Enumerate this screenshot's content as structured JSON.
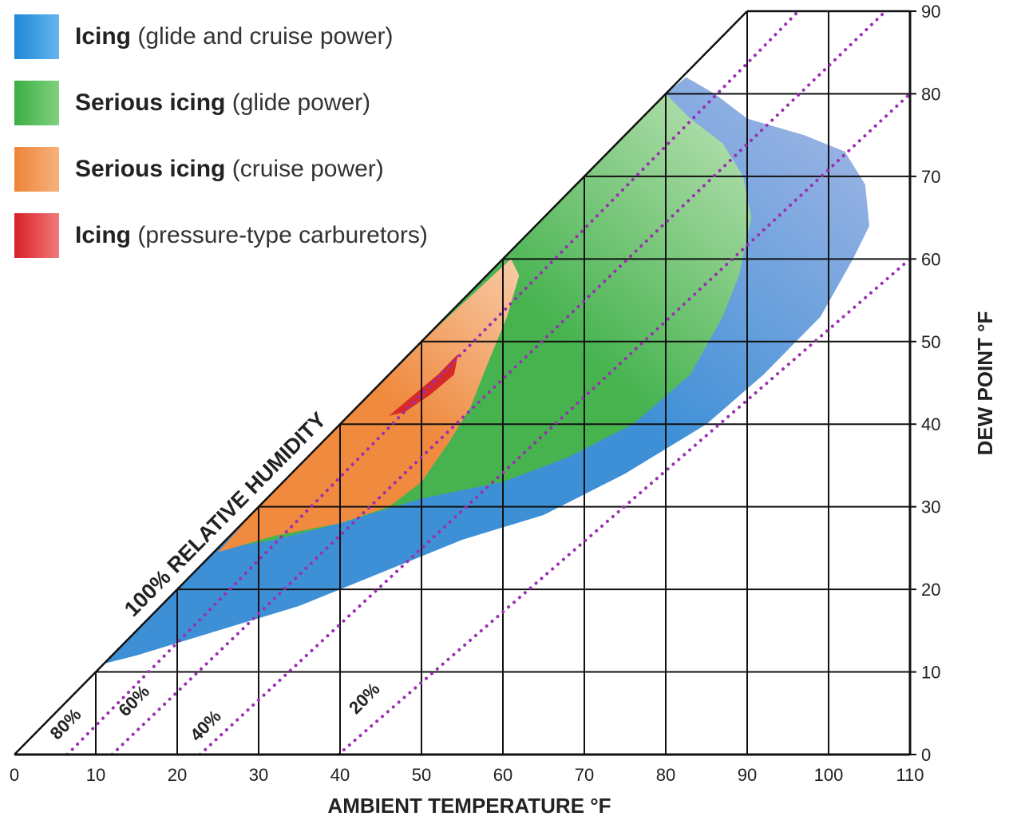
{
  "chart_data": {
    "type": "area",
    "title": "",
    "xlabel": "AMBIENT TEMPERATURE  °F",
    "ylabel": "DEW POINT  °F",
    "xlim": [
      0,
      110
    ],
    "ylim": [
      0,
      90
    ],
    "x_ticks": [
      "0",
      "10",
      "20",
      "30",
      "40",
      "50",
      "60",
      "70",
      "80",
      "90",
      "100",
      "110"
    ],
    "y_ticks": [
      "0",
      "10",
      "20",
      "30",
      "40",
      "50",
      "60",
      "70",
      "80",
      "90"
    ],
    "humidity_line_label": "100% RELATIVE HUMIDITY",
    "rh_lines": [
      {
        "label": "80%",
        "points": [
          [
            6.5,
            0
          ],
          [
            96.3,
            90
          ]
        ]
      },
      {
        "label": "60%",
        "points": [
          [
            12,
            0
          ],
          [
            107,
            90
          ]
        ]
      },
      {
        "label": "40%",
        "points": [
          [
            22.8,
            0
          ],
          [
            110,
            80
          ]
        ]
      },
      {
        "label": "20%",
        "points": [
          [
            39.8,
            0
          ],
          [
            110,
            60
          ]
        ]
      }
    ],
    "series": [
      {
        "name": "Icing (glide and cruise power)",
        "color": "#3d8fd6",
        "color_light": "#a9b9e6",
        "polygon": [
          [
            11,
            11
          ],
          [
            15,
            12
          ],
          [
            25,
            15
          ],
          [
            35,
            18
          ],
          [
            45,
            22
          ],
          [
            55,
            26
          ],
          [
            65,
            29
          ],
          [
            75,
            34
          ],
          [
            85,
            40
          ],
          [
            92,
            46
          ],
          [
            99,
            53
          ],
          [
            103,
            60
          ],
          [
            105,
            64
          ],
          [
            104.5,
            69
          ],
          [
            102,
            73
          ],
          [
            97,
            75
          ],
          [
            90,
            77
          ],
          [
            86,
            80
          ],
          [
            82.5,
            82
          ],
          [
            80,
            80
          ],
          [
            70,
            70
          ],
          [
            60,
            60
          ],
          [
            50,
            50
          ],
          [
            40,
            40
          ],
          [
            30,
            30
          ],
          [
            20,
            20
          ]
        ]
      },
      {
        "name": "Serious icing (glide power)",
        "color": "#46b34f",
        "color_light": "#bfe3b8",
        "polygon": [
          [
            26,
            25
          ],
          [
            32,
            26
          ],
          [
            40,
            28
          ],
          [
            50,
            31
          ],
          [
            60,
            33
          ],
          [
            68,
            36
          ],
          [
            76,
            40
          ],
          [
            83,
            46
          ],
          [
            87,
            53
          ],
          [
            89,
            58
          ],
          [
            90.5,
            65
          ],
          [
            89.5,
            70
          ],
          [
            87,
            74
          ],
          [
            83,
            77
          ],
          [
            80,
            80
          ],
          [
            70,
            70
          ],
          [
            60,
            60
          ],
          [
            50,
            50
          ],
          [
            40,
            40
          ],
          [
            30,
            30
          ]
        ]
      },
      {
        "name": "Serious icing (cruise power)",
        "color": "#ef8a3f",
        "color_light": "#f8cba8",
        "polygon": [
          [
            25,
            24.5
          ],
          [
            32,
            26.5
          ],
          [
            40,
            28
          ],
          [
            46,
            30
          ],
          [
            50,
            33
          ],
          [
            53.5,
            38
          ],
          [
            56,
            42
          ],
          [
            58,
            47
          ],
          [
            60.5,
            53
          ],
          [
            62,
            58
          ],
          [
            61,
            60
          ],
          [
            50,
            50
          ],
          [
            40,
            40
          ],
          [
            30,
            30
          ]
        ]
      },
      {
        "name": "Icing (pressure-type carburetors)",
        "color": "#d7282a",
        "polygon": [
          [
            46,
            41
          ],
          [
            49,
            43.5
          ],
          [
            52,
            46
          ],
          [
            54.5,
            48.5
          ],
          [
            54,
            46
          ],
          [
            51,
            43.5
          ],
          [
            48,
            41.5
          ]
        ]
      }
    ]
  },
  "legend": [
    {
      "bold": "Icing",
      "normal": "(glide and cruise power)",
      "color_dark": "#1e88d8",
      "color_light": "#63b6ec"
    },
    {
      "bold": "Serious icing",
      "normal": "(glide power)",
      "color_dark": "#3aae44",
      "color_light": "#7fd17e"
    },
    {
      "bold": "Serious icing",
      "normal": "(cruise power)",
      "color_dark": "#ee8438",
      "color_light": "#f6b27c"
    },
    {
      "bold": "Icing",
      "normal": "(pressure-type carburetors)",
      "color_dark": "#d9202a",
      "color_light": "#ef7a78"
    }
  ]
}
